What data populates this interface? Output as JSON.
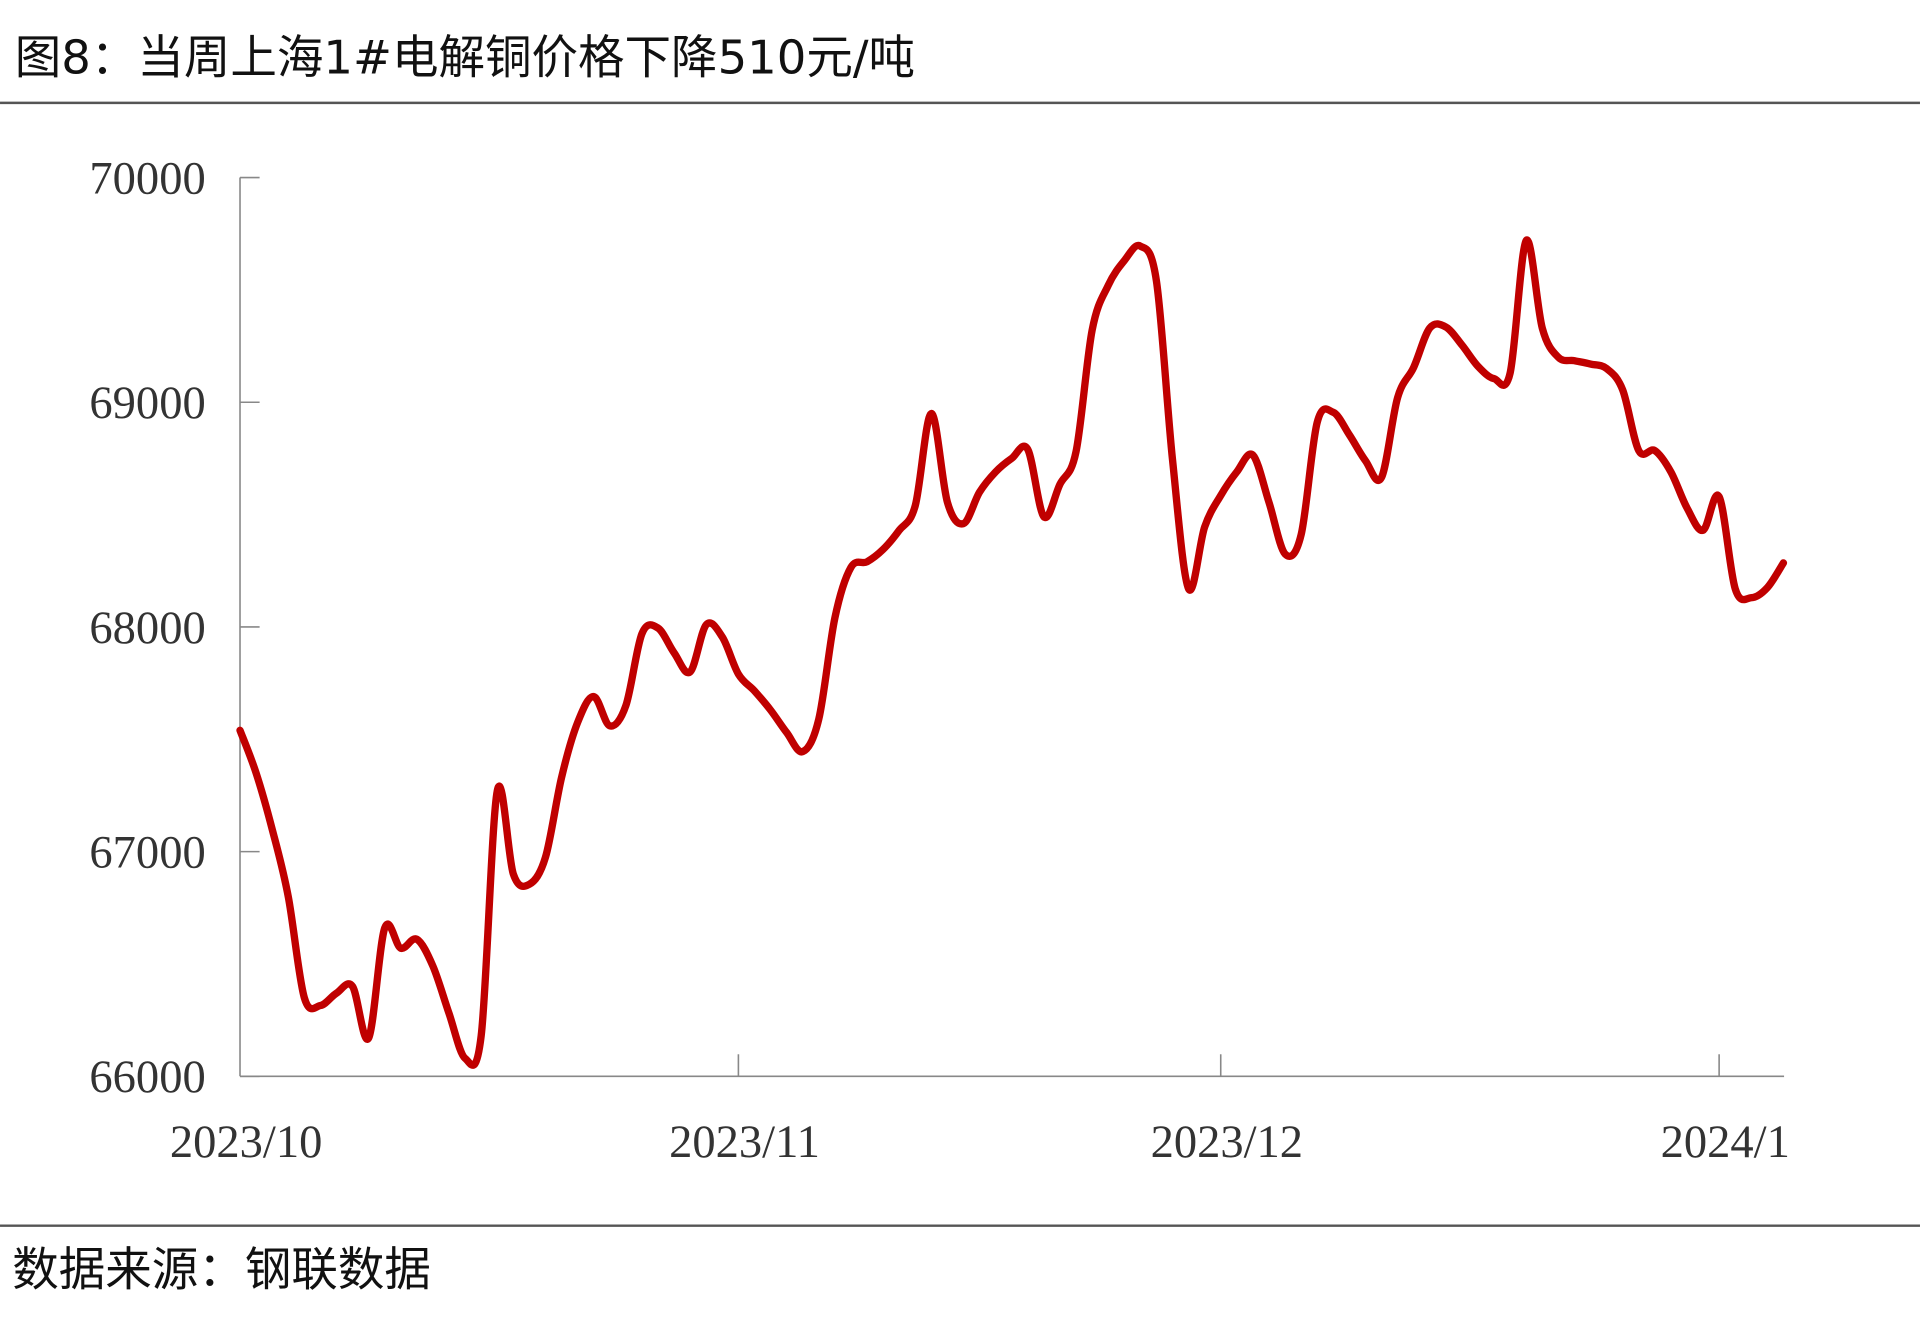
{
  "header": {
    "title": "图8：当周上海1#电解铜价格下降510元/吨"
  },
  "footer": {
    "source": "数据来源：钢联数据"
  },
  "chart_data": {
    "type": "line",
    "title": "图8：当周上海1#电解铜价格下降510元/吨",
    "xlabel": "",
    "ylabel": "",
    "ylim": [
      66000,
      70000
    ],
    "yticks": [
      "70000",
      "69000",
      "68000",
      "67000",
      "66000"
    ],
    "xticks": [
      "2023/10",
      "2023/11",
      "2023/12",
      "2024/1"
    ],
    "xlim": [
      "2023-10-01",
      "2024-01-05"
    ],
    "grid": false,
    "legend": "none",
    "line_color": "#C00000",
    "series": [
      {
        "points": [
          [
            "2023-10-01",
            67540
          ],
          [
            "2023-10-02",
            67350
          ],
          [
            "2023-10-03",
            67100
          ],
          [
            "2023-10-04",
            66800
          ],
          [
            "2023-10-05",
            66350
          ],
          [
            "2023-10-06",
            66315
          ],
          [
            "2023-10-07",
            66370
          ],
          [
            "2023-10-08",
            66400
          ],
          [
            "2023-10-09",
            66170
          ],
          [
            "2023-10-10",
            66660
          ],
          [
            "2023-10-11",
            66570
          ],
          [
            "2023-10-12",
            66610
          ],
          [
            "2023-10-13",
            66490
          ],
          [
            "2023-10-14",
            66280
          ],
          [
            "2023-10-15",
            66080
          ],
          [
            "2023-10-16",
            66180
          ],
          [
            "2023-10-17",
            67270
          ],
          [
            "2023-10-18",
            66900
          ],
          [
            "2023-10-19",
            66855
          ],
          [
            "2023-10-20",
            66975
          ],
          [
            "2023-10-21",
            67330
          ],
          [
            "2023-10-22",
            67575
          ],
          [
            "2023-10-23",
            67690
          ],
          [
            "2023-10-24",
            67560
          ],
          [
            "2023-10-25",
            67650
          ],
          [
            "2023-10-26",
            67970
          ],
          [
            "2023-10-27",
            67995
          ],
          [
            "2023-10-28",
            67885
          ],
          [
            "2023-10-29",
            67800
          ],
          [
            "2023-10-30",
            68010
          ],
          [
            "2023-10-31",
            67955
          ],
          [
            "2023-11-01",
            67790
          ],
          [
            "2023-11-02",
            67715
          ],
          [
            "2023-11-03",
            67630
          ],
          [
            "2023-11-04",
            67530
          ],
          [
            "2023-11-05",
            67445
          ],
          [
            "2023-11-06",
            67590
          ],
          [
            "2023-11-07",
            68040
          ],
          [
            "2023-11-08",
            68265
          ],
          [
            "2023-11-09",
            68290
          ],
          [
            "2023-11-10",
            68345
          ],
          [
            "2023-11-11",
            68430
          ],
          [
            "2023-11-12",
            68540
          ],
          [
            "2023-11-13",
            68950
          ],
          [
            "2023-11-14",
            68555
          ],
          [
            "2023-11-15",
            68460
          ],
          [
            "2023-11-16",
            68600
          ],
          [
            "2023-11-17",
            68690
          ],
          [
            "2023-11-18",
            68750
          ],
          [
            "2023-11-19",
            68790
          ],
          [
            "2023-11-20",
            68490
          ],
          [
            "2023-11-21",
            68635
          ],
          [
            "2023-11-22",
            68780
          ],
          [
            "2023-11-23",
            69320
          ],
          [
            "2023-11-24",
            69520
          ],
          [
            "2023-11-25",
            69630
          ],
          [
            "2023-11-26",
            69695
          ],
          [
            "2023-11-27",
            69540
          ],
          [
            "2023-11-28",
            68745
          ],
          [
            "2023-11-29",
            68170
          ],
          [
            "2023-11-30",
            68445
          ],
          [
            "2023-12-01",
            68585
          ],
          [
            "2023-12-02",
            68690
          ],
          [
            "2023-12-03",
            68765
          ],
          [
            "2023-12-04",
            68555
          ],
          [
            "2023-12-05",
            68325
          ],
          [
            "2023-12-06",
            68410
          ],
          [
            "2023-12-07",
            68910
          ],
          [
            "2023-12-08",
            68955
          ],
          [
            "2023-12-09",
            68855
          ],
          [
            "2023-12-10",
            68740
          ],
          [
            "2023-12-11",
            68665
          ],
          [
            "2023-12-12",
            69020
          ],
          [
            "2023-12-13",
            69155
          ],
          [
            "2023-12-14",
            69330
          ],
          [
            "2023-12-15",
            69335
          ],
          [
            "2023-12-16",
            69255
          ],
          [
            "2023-12-17",
            69160
          ],
          [
            "2023-12-18",
            69105
          ],
          [
            "2023-12-19",
            69130
          ],
          [
            "2023-12-20",
            69720
          ],
          [
            "2023-12-21",
            69330
          ],
          [
            "2023-12-22",
            69200
          ],
          [
            "2023-12-23",
            69185
          ],
          [
            "2023-12-24",
            69170
          ],
          [
            "2023-12-25",
            69150
          ],
          [
            "2023-12-26",
            69055
          ],
          [
            "2023-12-27",
            68785
          ],
          [
            "2023-12-28",
            68785
          ],
          [
            "2023-12-29",
            68690
          ],
          [
            "2023-12-30",
            68530
          ],
          [
            "2023-12-31",
            68430
          ],
          [
            "2024-01-01",
            68580
          ],
          [
            "2024-01-02",
            68170
          ],
          [
            "2024-01-03",
            68130
          ],
          [
            "2024-01-04",
            68175
          ],
          [
            "2024-01-05",
            68285
          ]
        ]
      }
    ]
  }
}
